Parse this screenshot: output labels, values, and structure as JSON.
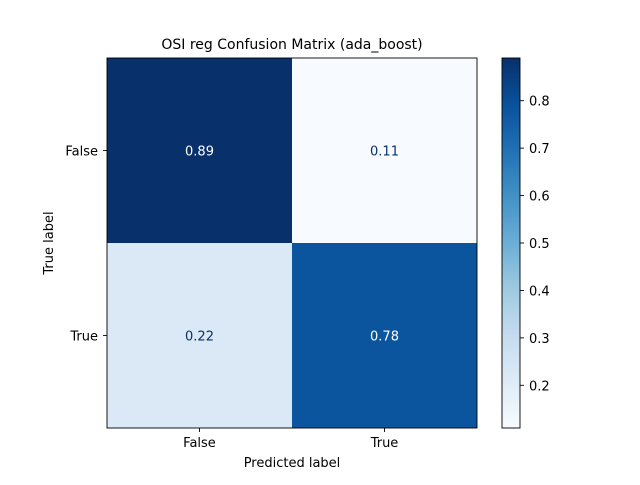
{
  "chart_data": {
    "type": "heatmap",
    "title": "OSI reg Confusion Matrix (ada_boost)",
    "xlabel": "Predicted label",
    "ylabel": "True label",
    "x_categories": [
      "False",
      "True"
    ],
    "y_categories": [
      "False",
      "True"
    ],
    "values": [
      [
        0.89,
        0.11
      ],
      [
        0.22,
        0.78
      ]
    ],
    "colormap": "Blues",
    "colorbar": {
      "range": [
        0.11,
        0.89
      ],
      "ticks": [
        0.2,
        0.3,
        0.4,
        0.5,
        0.6,
        0.7,
        0.8
      ],
      "tick_labels": [
        "0.2",
        "0.3",
        "0.4",
        "0.5",
        "0.6",
        "0.7",
        "0.8"
      ]
    },
    "grid": false
  }
}
